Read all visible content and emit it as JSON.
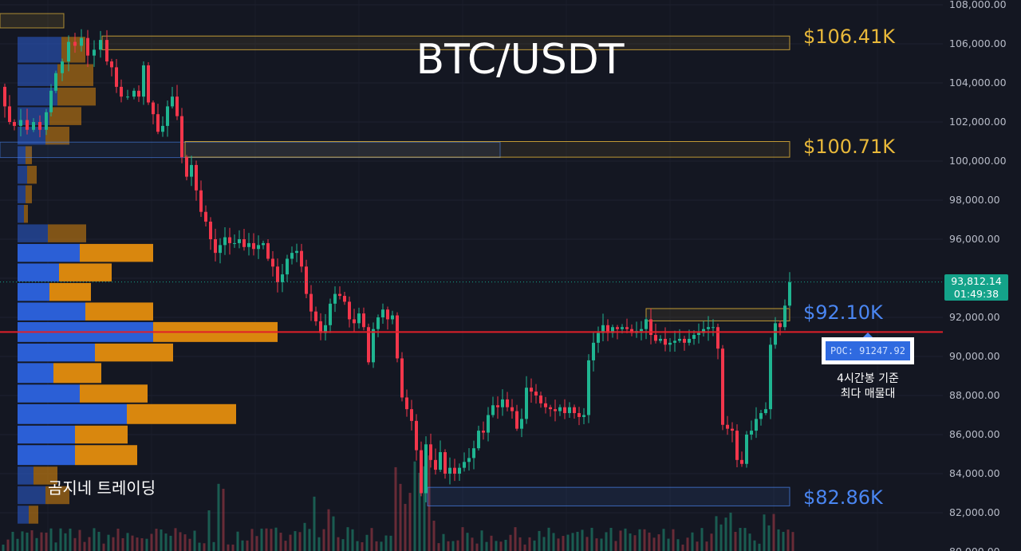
{
  "chart_data": {
    "type": "candlestick",
    "title": "BTC/USDT",
    "brand": "곰지네 트레이딩",
    "ylim": [
      80000,
      108000
    ],
    "y_ticks": [
      "108,000.00",
      "106,000.00",
      "104,000.00",
      "102,000.00",
      "100,000.00",
      "98,000.00",
      "96,000.00",
      "94,000.00",
      "92,000.00",
      "90,000.00",
      "88,000.00",
      "86,000.00",
      "84,000.00",
      "82,000.00",
      "80,000.00"
    ],
    "last_price": {
      "price": "93,812.14",
      "countdown": "01:49:38",
      "value": 93812.14
    },
    "poc": {
      "label": "POC: 91247.92",
      "value": 91247.92,
      "note_line1": "4시간봉 기준",
      "note_line2": "최다 매물대"
    },
    "levels": [
      {
        "label": "$106.41K",
        "value": 106410,
        "color": "#e8b83a"
      },
      {
        "label": "$100.71K",
        "value": 100710,
        "color": "#e8b83a"
      },
      {
        "label": "$92.10K",
        "value": 92100,
        "color": "#4a86f2"
      },
      {
        "label": "$82.86K",
        "value": 82860,
        "color": "#4a86f2"
      }
    ],
    "close_path": [
      [
        0,
        103800
      ],
      [
        6,
        102800
      ],
      [
        12,
        102000
      ],
      [
        18,
        101800
      ],
      [
        26,
        102100
      ],
      [
        34,
        101600
      ],
      [
        42,
        102000
      ],
      [
        50,
        101600
      ],
      [
        58,
        102500
      ],
      [
        64,
        103600
      ],
      [
        70,
        104500
      ],
      [
        78,
        105100
      ],
      [
        86,
        106100
      ],
      [
        94,
        105900
      ],
      [
        102,
        106300
      ],
      [
        110,
        105400
      ],
      [
        118,
        105700
      ],
      [
        126,
        106200
      ],
      [
        134,
        105100
      ],
      [
        140,
        104800
      ],
      [
        146,
        103800
      ],
      [
        152,
        103300
      ],
      [
        160,
        103300
      ],
      [
        168,
        103600
      ],
      [
        174,
        103300
      ],
      [
        180,
        104900
      ],
      [
        186,
        103000
      ],
      [
        192,
        102400
      ],
      [
        198,
        101500
      ],
      [
        204,
        101800
      ],
      [
        210,
        102800
      ],
      [
        216,
        103300
      ],
      [
        222,
        102300
      ],
      [
        228,
        100200
      ],
      [
        234,
        99200
      ],
      [
        240,
        99800
      ],
      [
        246,
        98500
      ],
      [
        252,
        97400
      ],
      [
        258,
        96900
      ],
      [
        264,
        96000
      ],
      [
        270,
        95300
      ],
      [
        276,
        95700
      ],
      [
        282,
        96100
      ],
      [
        288,
        95800
      ],
      [
        294,
        95800
      ],
      [
        300,
        96000
      ],
      [
        306,
        95600
      ],
      [
        312,
        95800
      ],
      [
        318,
        95500
      ],
      [
        324,
        95700
      ],
      [
        330,
        95800
      ],
      [
        336,
        95000
      ],
      [
        342,
        94600
      ],
      [
        348,
        93800
      ],
      [
        354,
        94200
      ],
      [
        360,
        95000
      ],
      [
        366,
        95300
      ],
      [
        372,
        95400
      ],
      [
        378,
        94600
      ],
      [
        384,
        93200
      ],
      [
        390,
        92300
      ],
      [
        396,
        91800
      ],
      [
        402,
        91200
      ],
      [
        408,
        91600
      ],
      [
        414,
        92700
      ],
      [
        420,
        93200
      ],
      [
        426,
        93100
      ],
      [
        432,
        92800
      ],
      [
        438,
        91900
      ],
      [
        444,
        91700
      ],
      [
        450,
        92200
      ],
      [
        456,
        91500
      ],
      [
        462,
        89700
      ],
      [
        468,
        91400
      ],
      [
        474,
        92000
      ],
      [
        480,
        92400
      ],
      [
        486,
        91900
      ],
      [
        492,
        92100
      ],
      [
        498,
        89900
      ],
      [
        504,
        87900
      ],
      [
        510,
        87300
      ],
      [
        516,
        86700
      ],
      [
        522,
        85200
      ],
      [
        528,
        83000
      ],
      [
        534,
        85500
      ],
      [
        540,
        84700
      ],
      [
        546,
        84200
      ],
      [
        552,
        85100
      ],
      [
        558,
        84000
      ],
      [
        564,
        84300
      ],
      [
        570,
        84000
      ],
      [
        576,
        84300
      ],
      [
        582,
        84600
      ],
      [
        588,
        84800
      ],
      [
        594,
        85300
      ],
      [
        600,
        86200
      ],
      [
        606,
        86100
      ],
      [
        612,
        87000
      ],
      [
        618,
        87500
      ],
      [
        624,
        87400
      ],
      [
        630,
        87800
      ],
      [
        636,
        87400
      ],
      [
        642,
        87200
      ],
      [
        648,
        86300
      ],
      [
        654,
        86800
      ],
      [
        660,
        88400
      ],
      [
        666,
        88200
      ],
      [
        672,
        88000
      ],
      [
        678,
        87600
      ],
      [
        684,
        87400
      ],
      [
        690,
        87300
      ],
      [
        696,
        87200
      ],
      [
        702,
        87400
      ],
      [
        708,
        87100
      ],
      [
        714,
        87400
      ],
      [
        720,
        87100
      ],
      [
        726,
        86900
      ],
      [
        732,
        87000
      ],
      [
        738,
        89800
      ],
      [
        744,
        90700
      ],
      [
        750,
        91200
      ],
      [
        756,
        91600
      ],
      [
        762,
        91200
      ],
      [
        768,
        91500
      ],
      [
        774,
        91400
      ],
      [
        780,
        91500
      ],
      [
        786,
        91400
      ],
      [
        792,
        91200
      ],
      [
        798,
        91300
      ],
      [
        804,
        91400
      ],
      [
        810,
        91900
      ],
      [
        816,
        91100
      ],
      [
        822,
        90800
      ],
      [
        828,
        90900
      ],
      [
        834,
        90600
      ],
      [
        840,
        90700
      ],
      [
        846,
        90800
      ],
      [
        852,
        90900
      ],
      [
        858,
        90700
      ],
      [
        864,
        90900
      ],
      [
        870,
        91100
      ],
      [
        876,
        91200
      ],
      [
        882,
        91400
      ],
      [
        888,
        91500
      ],
      [
        894,
        91500
      ],
      [
        900,
        90400
      ],
      [
        906,
        86500
      ],
      [
        912,
        86300
      ],
      [
        918,
        86200
      ],
      [
        924,
        84700
      ],
      [
        930,
        84500
      ],
      [
        936,
        86000
      ],
      [
        942,
        86200
      ],
      [
        948,
        86800
      ],
      [
        954,
        87100
      ],
      [
        960,
        87300
      ],
      [
        966,
        90600
      ],
      [
        972,
        91700
      ],
      [
        978,
        91500
      ],
      [
        984,
        92600
      ],
      [
        990,
        93800
      ]
    ]
  }
}
